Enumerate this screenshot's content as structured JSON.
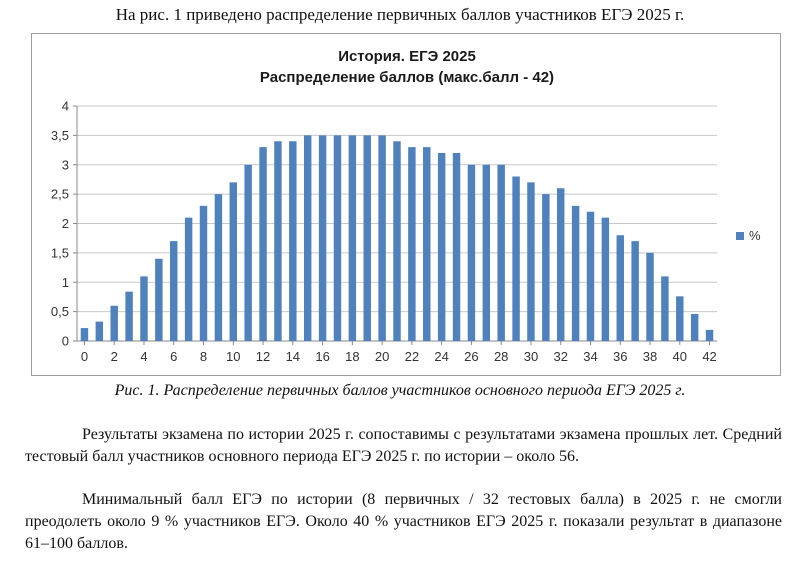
{
  "intro_text": "На рис. 1 приведено распределение первичных баллов участников ЕГЭ 2025 г.",
  "chart_data": {
    "type": "bar",
    "title": "История. ЕГЭ 2025",
    "subtitle": "Распределение баллов (макс.балл - 42)",
    "xlabel": "",
    "ylabel": "",
    "x": [
      0,
      1,
      2,
      3,
      4,
      5,
      6,
      7,
      8,
      9,
      10,
      11,
      12,
      13,
      14,
      15,
      16,
      17,
      18,
      19,
      20,
      21,
      22,
      23,
      24,
      25,
      26,
      27,
      28,
      29,
      30,
      31,
      32,
      33,
      34,
      35,
      36,
      37,
      38,
      39,
      40,
      41,
      42
    ],
    "x_tick_labels": [
      "0",
      "2",
      "4",
      "6",
      "8",
      "10",
      "12",
      "14",
      "16",
      "18",
      "20",
      "22",
      "24",
      "26",
      "28",
      "30",
      "32",
      "34",
      "36",
      "38",
      "40",
      "42"
    ],
    "y_tick_labels": [
      "0",
      "0,5",
      "1",
      "1,5",
      "2",
      "2,5",
      "3",
      "3,5",
      "4"
    ],
    "ylim": [
      0,
      4
    ],
    "series": [
      {
        "name": "%",
        "color": "#4f81bd",
        "values": [
          0.22,
          0.33,
          0.6,
          0.84,
          1.1,
          1.4,
          1.7,
          2.1,
          2.3,
          2.5,
          2.7,
          3.0,
          3.3,
          3.4,
          3.4,
          3.5,
          3.5,
          3.5,
          3.5,
          3.5,
          3.5,
          3.4,
          3.3,
          3.3,
          3.2,
          3.2,
          3.0,
          3.0,
          3.0,
          2.8,
          2.7,
          2.5,
          2.6,
          2.3,
          2.2,
          2.1,
          1.8,
          1.7,
          1.5,
          1.1,
          0.76,
          0.46,
          0.19
        ]
      }
    ],
    "grid": true,
    "legend_position": "right"
  },
  "caption": "Рис. 1. Распределение первичных баллов участников основного периода ЕГЭ 2025 г.",
  "paragraph_1": "Результаты экзамена по истории 2025 г. сопоставимы с результатами экзамена прошлых лет. Средний тестовый балл участников основного периода ЕГЭ 2025 г. по истории – около 56.",
  "paragraph_2": "Минимальный балл ЕГЭ по истории (8 первичных / 32 тестовых балла) в 2025 г. не смогли преодолеть около 9 % участников ЕГЭ. Около 40 % участников ЕГЭ 2025 г. показали результат в диапазоне 61–100 баллов."
}
